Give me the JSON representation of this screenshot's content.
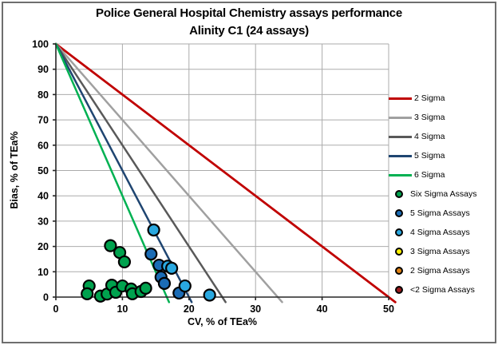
{
  "chart_data": {
    "type": "scatter",
    "title": "Police General Hospital Chemistry assays performance",
    "subtitle": "Alinity C1 (24 assays)",
    "xlabel": "CV, % of TEa%",
    "ylabel": "Bias, % of TEa%",
    "xlim": [
      0,
      50
    ],
    "ylim": [
      0,
      100
    ],
    "xticks": [
      0,
      10,
      20,
      30,
      40,
      50
    ],
    "yticks": [
      0,
      10,
      20,
      30,
      40,
      50,
      60,
      70,
      80,
      90,
      100
    ],
    "grid": true,
    "grid_color": "#ababab",
    "axis_color": "#262626",
    "legend_position": "right",
    "total_assays": 24,
    "sigma_lines": [
      {
        "name": "2 Sigma",
        "color": "#c00000",
        "x_intercept": 50,
        "width": 2.8
      },
      {
        "name": "3 Sigma",
        "color": "#a0a0a0",
        "x_intercept": 33.33,
        "width": 2.5
      },
      {
        "name": "4 Sigma",
        "color": "#595959",
        "x_intercept": 25,
        "width": 2.5
      },
      {
        "name": "5 Sigma",
        "color": "#1f4571",
        "x_intercept": 20,
        "width": 2.5
      },
      {
        "name": "6 Sigma",
        "color": "#00b152",
        "x_intercept": 16.67,
        "width": 2.5
      }
    ],
    "series": [
      {
        "name": "Six Sigma Assays",
        "color": "#00a24e",
        "points": [
          [
            8.2,
            20.3
          ],
          [
            9.6,
            17.6
          ],
          [
            10.3,
            13.9
          ],
          [
            5.0,
            4.4
          ],
          [
            4.7,
            1.3
          ],
          [
            6.7,
            0.4
          ],
          [
            7.7,
            1.2
          ],
          [
            8.4,
            4.7
          ],
          [
            9.0,
            1.9
          ],
          [
            10.0,
            4.4
          ],
          [
            11.3,
            3.2
          ],
          [
            11.5,
            1.3
          ],
          [
            12.8,
            2.2
          ],
          [
            13.5,
            3.5
          ]
        ]
      },
      {
        "name": "5 Sigma Assays",
        "color": "#1b6cb5",
        "points": [
          [
            14.3,
            17.0
          ],
          [
            15.5,
            12.6
          ],
          [
            15.8,
            7.9
          ],
          [
            16.3,
            5.4
          ],
          [
            18.5,
            1.6
          ]
        ]
      },
      {
        "name": "4 Sigma Assays",
        "color": "#29a8e0",
        "points": [
          [
            14.7,
            26.5
          ],
          [
            16.8,
            12.2
          ],
          [
            17.4,
            11.4
          ],
          [
            19.4,
            4.4
          ],
          [
            23.1,
            0.8
          ]
        ]
      },
      {
        "name": "3 Sigma Assays",
        "color": "#fff200",
        "points": []
      },
      {
        "name": "2 Sigma Assays",
        "color": "#e08214",
        "points": []
      },
      {
        "name": "<2 Sigma Assays",
        "color": "#9c1a1c",
        "points": []
      }
    ],
    "marker": {
      "radius": 7,
      "stroke": "#000000",
      "stroke_width": 2.2
    }
  }
}
